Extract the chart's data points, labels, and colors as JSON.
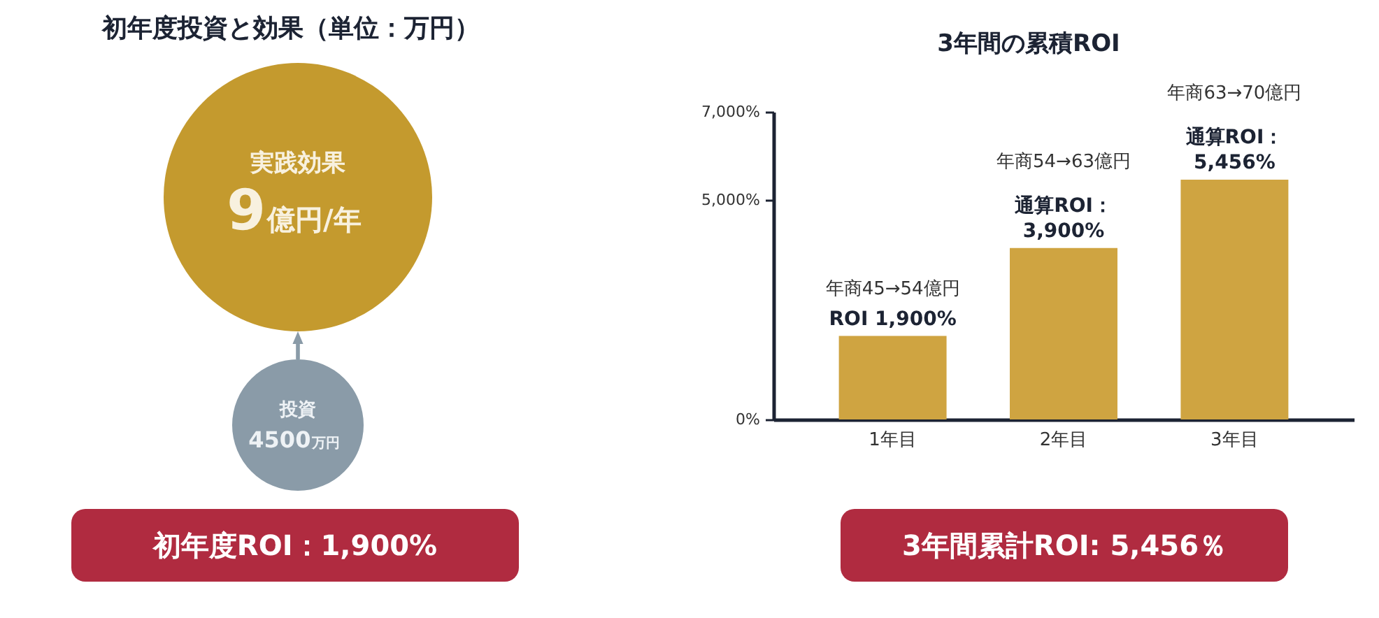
{
  "chart_data": [
    {
      "type": "other",
      "title": "初年度投資と効果（単位：万円）",
      "categories": [
        "実践効果",
        "投資"
      ],
      "value_labels": [
        "9億円/年",
        "4500万円"
      ],
      "colors": [
        "#c49a2e",
        "#8a9ba8"
      ],
      "annotations": [
        "初年度ROI：1,900%"
      ]
    },
    {
      "type": "bar",
      "title": "3年間の累積ROI",
      "categories": [
        "1年目",
        "2年目",
        "3年目"
      ],
      "values": [
        1900,
        3900,
        5456
      ],
      "color": "#cfa441",
      "value_labels": [
        "ROI 1,900%",
        "通算ROI：\n3,900%",
        "通算ROI：\n5,456%"
      ],
      "ylim": [
        0,
        7000
      ],
      "yticks": [
        {
          "value": 0,
          "label": "0%"
        },
        {
          "value": 5000,
          "label": "5,000%"
        },
        {
          "value": 7000,
          "label": "7,000%"
        }
      ],
      "annotations": [
        "年商45→54億円",
        "年商54→63億円",
        "年商63→70億円",
        "3年間累計ROI: 5,456％"
      ]
    }
  ]
}
